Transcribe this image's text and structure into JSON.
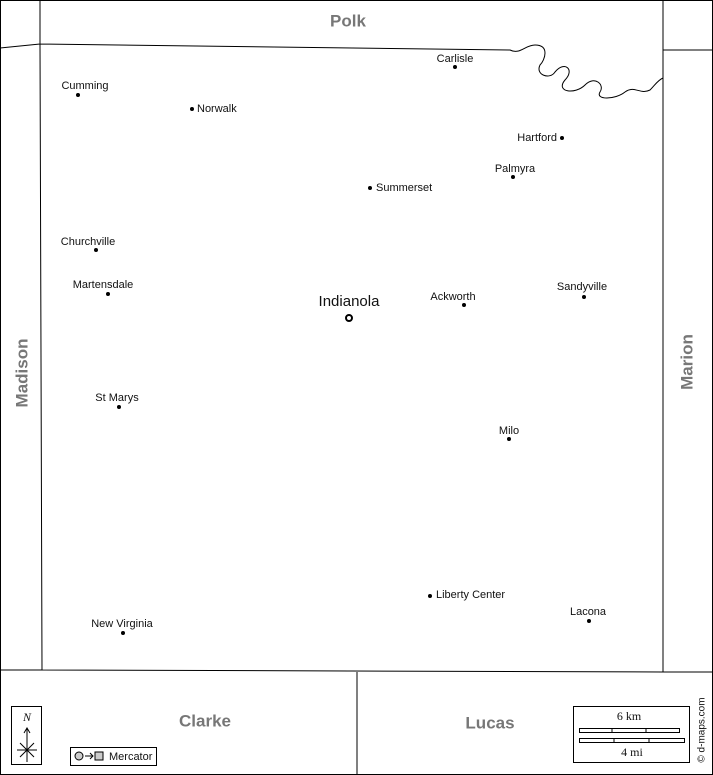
{
  "neighbors": [
    "Polk",
    "Madison",
    "Marion",
    "Clarke",
    "Lucas"
  ],
  "towns": [
    {
      "name": "Carlisle"
    },
    {
      "name": "Cumming"
    },
    {
      "name": "Norwalk"
    },
    {
      "name": "Hartford"
    },
    {
      "name": "Palmyra"
    },
    {
      "name": "Summerset"
    },
    {
      "name": "Churchville"
    },
    {
      "name": "Martensdale"
    },
    {
      "name": "Indianola",
      "seat": true
    },
    {
      "name": "Ackworth"
    },
    {
      "name": "Sandyville"
    },
    {
      "name": "St Marys"
    },
    {
      "name": "Milo"
    },
    {
      "name": "Liberty Center"
    },
    {
      "name": "Lacona"
    },
    {
      "name": "New Virginia"
    }
  ],
  "legend": {
    "north": "N",
    "projection": "Mercator",
    "scale_km": "6 km",
    "scale_mi": "4 mi",
    "credit": "© d-maps.com"
  }
}
